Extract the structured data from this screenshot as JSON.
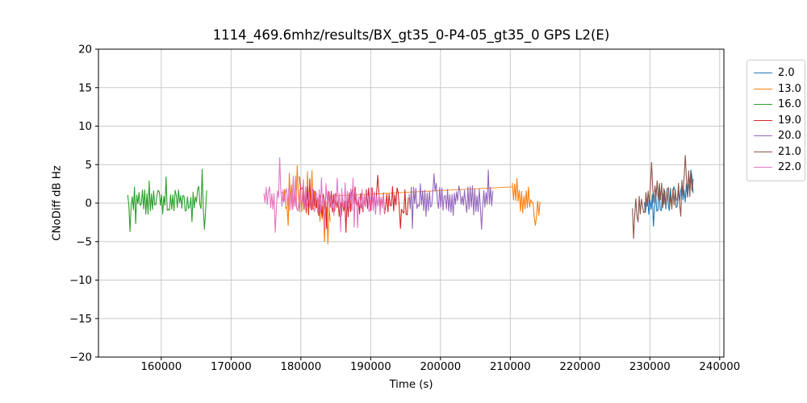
{
  "title": "1114_469.6mhz/results/BX_gt35_0-P4-05_gt35_0 GPS L2(E)",
  "axes": {
    "xlabel": "Time (s)",
    "ylabel": "CNoDiff dB Hz",
    "x_tick_labels": [
      "160000",
      "170000",
      "180000",
      "190000",
      "200000",
      "210000",
      "220000",
      "230000",
      "240000"
    ],
    "x_tick_values": [
      160000,
      170000,
      180000,
      190000,
      200000,
      210000,
      220000,
      230000,
      240000
    ],
    "y_tick_labels": [
      "20",
      "15",
      "10",
      "5",
      "0",
      "−5",
      "−10",
      "−15",
      "−20"
    ],
    "y_tick_values": [
      20,
      15,
      10,
      5,
      0,
      -5,
      -10,
      -15,
      -20
    ]
  },
  "legend": {
    "entries": [
      "2.0",
      "13.0",
      "16.0",
      "19.0",
      "20.0",
      "21.0",
      "22.0"
    ]
  },
  "chart_data": {
    "type": "line",
    "title": "1114_469.6mhz/results/BX_gt35_0-P4-05_gt35_0 GPS L2(E)",
    "xlabel": "Time (s)",
    "ylabel": "CNoDiff dB Hz",
    "xlim": [
      151000,
      240600
    ],
    "ylim": [
      -20,
      20
    ],
    "grid": true,
    "grid_color": "#c9c9c9",
    "frame_color": "#000000",
    "legend_position": "outside-right",
    "series": [
      {
        "name": "2.0",
        "color": "#1f77b4",
        "segments": [
          {
            "t_start": 229200,
            "t_end": 236200,
            "seed": 21,
            "noise_amp": 1.25,
            "spike_p": 0.05,
            "spike_amp": 1.1,
            "trend": [
              [
                229200,
                -0.4
              ],
              [
                230200,
                0.1
              ],
              [
                231200,
                0.3
              ],
              [
                232300,
                0.7
              ],
              [
                233300,
                0.4
              ],
              [
                234500,
                1.0
              ],
              [
                235600,
                1.8
              ],
              [
                236200,
                2.3
              ]
            ],
            "events": [
              [
                230500,
                -3.0
              ],
              [
                235900,
                4.3
              ]
            ]
          }
        ],
        "connectors": []
      },
      {
        "name": "13.0",
        "color": "#ff7f0e",
        "segments": [
          {
            "t_start": 177200,
            "t_end": 184200,
            "seed": 13,
            "noise_amp": 1.4,
            "spike_p": 0.06,
            "spike_amp": 1.2,
            "trend": [
              [
                177200,
                0.6
              ],
              [
                178500,
                0.9
              ],
              [
                180000,
                0.3
              ],
              [
                181500,
                0.2
              ],
              [
                182800,
                -0.8
              ],
              [
                183600,
                -1.6
              ],
              [
                184200,
                -1.2
              ]
            ],
            "events": [
              [
                178300,
                3.9
              ],
              [
                181000,
                4.1
              ],
              [
                183400,
                -5.0
              ],
              [
                183900,
                -5.3
              ]
            ]
          },
          {
            "t_start": 210300,
            "t_end": 214250,
            "seed": 14,
            "noise_amp": 1.3,
            "spike_p": 0.06,
            "spike_amp": 1.0,
            "trend": [
              [
                210300,
                2.0
              ],
              [
                211000,
                0.9
              ],
              [
                211800,
                -0.2
              ],
              [
                212500,
                0.8
              ],
              [
                213200,
                -0.4
              ],
              [
                213800,
                -1.0
              ],
              [
                214250,
                -0.6
              ]
            ],
            "events": [
              [
                211000,
                3.2
              ],
              [
                213600,
                -2.9
              ]
            ]
          }
        ],
        "connectors": [
          [
            [
              184200,
              0.9
            ],
            [
              210300,
              2.1
            ]
          ]
        ]
      },
      {
        "name": "16.0",
        "color": "#2ca02c",
        "segments": [
          {
            "t_start": 155200,
            "t_end": 166500,
            "seed": 16,
            "noise_amp": 1.35,
            "spike_p": 0.05,
            "spike_amp": 1.1,
            "trend": [
              [
                155200,
                0.2
              ],
              [
                156500,
                0.6
              ],
              [
                158000,
                -0.1
              ],
              [
                159500,
                0.5
              ],
              [
                161000,
                0.1
              ],
              [
                162500,
                0.4
              ],
              [
                164000,
                0.0
              ],
              [
                165300,
                0.7
              ],
              [
                166500,
                0.2
              ]
            ],
            "events": [
              [
                155600,
                -3.7
              ],
              [
                160700,
                3.4
              ],
              [
                165900,
                4.4
              ],
              [
                166200,
                -3.4
              ]
            ]
          }
        ],
        "connectors": []
      },
      {
        "name": "19.0",
        "color": "#d62728",
        "segments": [
          {
            "t_start": 179800,
            "t_end": 195400,
            "seed": 19,
            "noise_amp": 1.4,
            "spike_p": 0.05,
            "spike_amp": 1.0,
            "trend": [
              [
                179800,
                0.5
              ],
              [
                181500,
                0.2
              ],
              [
                183000,
                -0.3
              ],
              [
                184500,
                0.3
              ],
              [
                186000,
                -0.4
              ],
              [
                188000,
                0.3
              ],
              [
                190000,
                0.4
              ],
              [
                192000,
                0.1
              ],
              [
                193500,
                0.5
              ],
              [
                195400,
                0.0
              ]
            ],
            "events": [
              [
                186500,
                -3.8
              ],
              [
                191000,
                3.6
              ],
              [
                194200,
                -3.3
              ]
            ]
          }
        ],
        "connectors": []
      },
      {
        "name": "20.0",
        "color": "#9467bd",
        "segments": [
          {
            "t_start": 195500,
            "t_end": 207500,
            "seed": 20,
            "noise_amp": 1.45,
            "spike_p": 0.05,
            "spike_amp": 1.1,
            "trend": [
              [
                195500,
                0.4
              ],
              [
                196800,
                0.9
              ],
              [
                198000,
                0.3
              ],
              [
                199500,
                0.7
              ],
              [
                201000,
                0.2
              ],
              [
                202500,
                0.6
              ],
              [
                204000,
                0.3
              ],
              [
                205500,
                0.5
              ],
              [
                206700,
                0.8
              ],
              [
                207500,
                0.1
              ]
            ],
            "events": [
              [
                196000,
                -3.3
              ],
              [
                199000,
                3.8
              ],
              [
                205800,
                -3.4
              ],
              [
                206900,
                4.3
              ]
            ]
          }
        ],
        "connectors": []
      },
      {
        "name": "21.0",
        "color": "#8c564b",
        "segments": [
          {
            "t_start": 227500,
            "t_end": 236200,
            "seed": 31,
            "noise_amp": 1.4,
            "spike_p": 0.06,
            "spike_amp": 1.1,
            "trend": [
              [
                227500,
                -1.2
              ],
              [
                228300,
                -0.6
              ],
              [
                229200,
                0.3
              ],
              [
                230200,
                1.0
              ],
              [
                231000,
                1.4
              ],
              [
                232000,
                0.9
              ],
              [
                233000,
                0.4
              ],
              [
                234000,
                1.2
              ],
              [
                235000,
                2.0
              ],
              [
                235800,
                2.6
              ],
              [
                236200,
                2.2
              ]
            ],
            "events": [
              [
                227600,
                -4.6
              ],
              [
                230300,
                5.3
              ],
              [
                235100,
                6.2
              ]
            ]
          }
        ],
        "connectors": []
      },
      {
        "name": "22.0",
        "color": "#e377c2",
        "segments": [
          {
            "t_start": 174700,
            "t_end": 192000,
            "seed": 22,
            "noise_amp": 1.45,
            "spike_p": 0.05,
            "spike_amp": 1.1,
            "trend": [
              [
                174700,
                0.3
              ],
              [
                175600,
                0.9
              ],
              [
                176400,
                -0.3
              ],
              [
                177300,
                1.0
              ],
              [
                178500,
                0.5
              ],
              [
                180000,
                0.7
              ],
              [
                181500,
                0.3
              ],
              [
                183000,
                0.5
              ],
              [
                184500,
                0.2
              ],
              [
                186000,
                0.6
              ],
              [
                187500,
                0.1
              ],
              [
                189000,
                0.5
              ],
              [
                190500,
                0.3
              ],
              [
                192000,
                0.1
              ]
            ],
            "events": [
              [
                176300,
                -3.8
              ],
              [
                177000,
                5.9
              ],
              [
                183500,
                -3.4
              ],
              [
                188200,
                -3.2
              ]
            ]
          }
        ],
        "connectors": []
      }
    ]
  }
}
